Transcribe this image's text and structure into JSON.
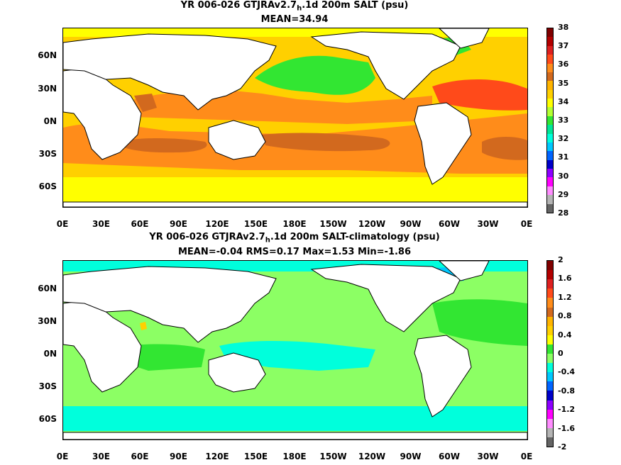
{
  "panel1": {
    "title_pre": "YR 006-026 GTJRAv2.7",
    "title_sub": "h",
    "title_post": ".1d 200m SALT (psu)",
    "stats": "MEAN=34.94",
    "colorbar": {
      "labels": [
        "38",
        "37",
        "36",
        "35",
        "34",
        "33",
        "32",
        "31",
        "30",
        "29",
        "28"
      ],
      "colors": [
        "#7f0000",
        "#b20000",
        "#dd2020",
        "#ff4a1a",
        "#ff8c1a",
        "#d2691e",
        "#ffb400",
        "#ffd000",
        "#ffff00",
        "#b4ff32",
        "#32e632",
        "#00e696",
        "#00ffdc",
        "#00c8ff",
        "#0064ff",
        "#0000c8",
        "#8c00ff",
        "#ff00ff",
        "#ff8cff",
        "#b4b4b4",
        "#646464"
      ]
    }
  },
  "panel2": {
    "title_pre": "YR 006-026 GTJRAv2.7",
    "title_sub": "h",
    "title_post": ".1d 200m SALT-climatology (psu)",
    "stats": "MEAN=-0.04   RMS=0.17   Max=1.53   Min=-1.86",
    "colorbar": {
      "labels": [
        "2",
        "1.6",
        "1.2",
        "0.8",
        "0.4",
        "0",
        "-0.4",
        "-0.8",
        "-1.2",
        "-1.6",
        "-2"
      ],
      "colors": [
        "#7f0000",
        "#b20000",
        "#dd2020",
        "#ff4a1a",
        "#ff8c1a",
        "#d2691e",
        "#ffb400",
        "#ffd000",
        "#ffff00",
        "#32e632",
        "#8cff64",
        "#00ffdc",
        "#00c8ff",
        "#0064ff",
        "#0000c8",
        "#8c00ff",
        "#ff00ff",
        "#ff8cff",
        "#b4b4b4",
        "#646464"
      ]
    }
  },
  "axes": {
    "lat_labels": [
      "60N",
      "30N",
      "0N",
      "30S",
      "60S"
    ],
    "lon_labels": [
      "0E",
      "30E",
      "60E",
      "90E",
      "120E",
      "150E",
      "180E",
      "150W",
      "120W",
      "90W",
      "60W",
      "30W",
      "0E"
    ]
  },
  "colors": {
    "land": "#ffffff",
    "coast": "#000000",
    "p1_base": "#ffd000",
    "p1_subtropic": "#ff8c1a",
    "p1_max": "#d2691e",
    "p1_fresh": "#32e632",
    "p1_lowfresh": "#ffff00",
    "p1_atlantic": "#ff4a1a",
    "p2_base": "#8cff64",
    "p2_neg": "#00ffdc",
    "p2_neg2": "#00c8ff",
    "p2_pos": "#32e632",
    "p2_hot": "#ffd000"
  }
}
